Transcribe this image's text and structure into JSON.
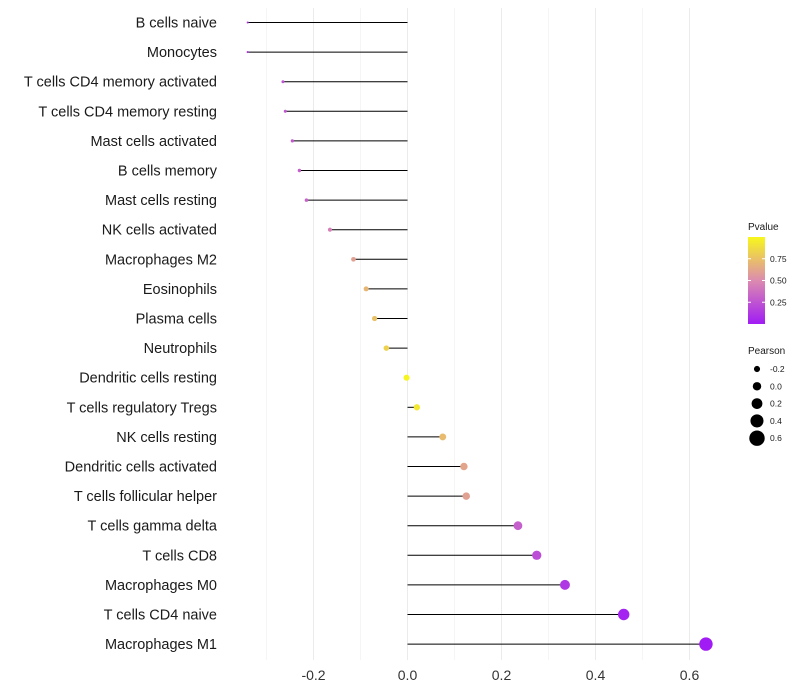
{
  "chart_data": {
    "type": "lollipop",
    "title": "",
    "xlabel": "",
    "ylabel": "",
    "xlim": [
      -0.35,
      0.65
    ],
    "xticks": [
      -0.2,
      0.0,
      0.2,
      0.4,
      0.6
    ],
    "xtick_labels": [
      "-0.2",
      "0.0",
      "0.2",
      "0.4",
      "0.6"
    ],
    "grid": true,
    "points": [
      {
        "label": "B cells naive",
        "pearson": -0.34,
        "pvalue": 0.1
      },
      {
        "label": "Monocytes",
        "pearson": -0.34,
        "pvalue": 0.1
      },
      {
        "label": "T cells CD4 memory activated",
        "pearson": -0.265,
        "pvalue": 0.25
      },
      {
        "label": "T cells CD4 memory resting",
        "pearson": -0.26,
        "pvalue": 0.26
      },
      {
        "label": "Mast cells activated",
        "pearson": -0.245,
        "pvalue": 0.28
      },
      {
        "label": "B cells memory",
        "pearson": -0.23,
        "pvalue": 0.3
      },
      {
        "label": "Mast cells resting",
        "pearson": -0.215,
        "pvalue": 0.32
      },
      {
        "label": "NK cells activated",
        "pearson": -0.165,
        "pvalue": 0.45
      },
      {
        "label": "Macrophages M2",
        "pearson": -0.115,
        "pvalue": 0.6
      },
      {
        "label": "Eosinophils",
        "pearson": -0.088,
        "pvalue": 0.7
      },
      {
        "label": "Plasma cells",
        "pearson": -0.07,
        "pvalue": 0.75
      },
      {
        "label": "Neutrophils",
        "pearson": -0.045,
        "pvalue": 0.83
      },
      {
        "label": "Dendritic cells resting",
        "pearson": -0.002,
        "pvalue": 0.99
      },
      {
        "label": "T cells regulatory  Tregs",
        "pearson": 0.02,
        "pvalue": 0.93
      },
      {
        "label": "NK cells resting",
        "pearson": 0.075,
        "pvalue": 0.72
      },
      {
        "label": "Dendritic cells activated",
        "pearson": 0.12,
        "pvalue": 0.62
      },
      {
        "label": "T cells follicular helper",
        "pearson": 0.125,
        "pvalue": 0.6
      },
      {
        "label": "T cells gamma delta",
        "pearson": 0.235,
        "pvalue": 0.3
      },
      {
        "label": "T cells CD8",
        "pearson": 0.275,
        "pvalue": 0.22
      },
      {
        "label": "Macrophages M0",
        "pearson": 0.335,
        "pvalue": 0.12
      },
      {
        "label": "T cells CD4 naive",
        "pearson": 0.46,
        "pvalue": 0.03
      },
      {
        "label": "Macrophages M1",
        "pearson": 0.635,
        "pvalue": 0.001
      }
    ],
    "legend": {
      "placement": "right",
      "color": {
        "title": "Pvalue",
        "ticks": [
          "0.75",
          "0.50",
          "0.25"
        ],
        "tick_values": [
          0.75,
          0.5,
          0.25
        ],
        "range": [
          0.0,
          1.0
        ],
        "low_color": "#a11cf4",
        "mid_color": "#dc8bb0",
        "high_color": "#f7f71c"
      },
      "size": {
        "title": "Pearson",
        "labels": [
          "-0.2",
          "0.0",
          "0.2",
          "0.4",
          "0.6"
        ],
        "values": [
          -0.2,
          0.0,
          0.2,
          0.4,
          0.6
        ]
      }
    }
  }
}
